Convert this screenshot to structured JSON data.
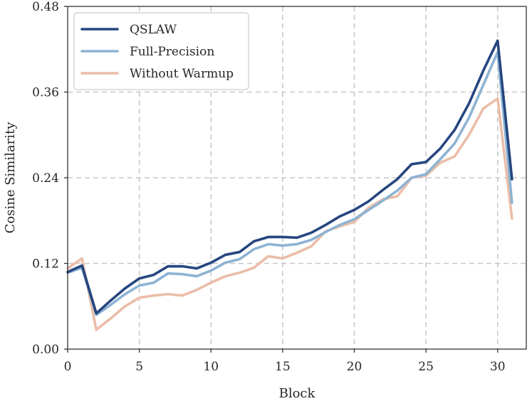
{
  "chart_data": {
    "type": "line",
    "title": "",
    "xlabel": "Block",
    "ylabel": "Cosine Similarity",
    "xlim": [
      0,
      32
    ],
    "ylim": [
      0,
      0.48
    ],
    "xticks": [
      0,
      5,
      10,
      15,
      20,
      25,
      30
    ],
    "xtick_labels": [
      "0",
      "5",
      "10",
      "15",
      "20",
      "25",
      "30"
    ],
    "yticks": [
      0,
      0.12,
      0.24,
      0.36,
      0.48
    ],
    "ytick_labels": [
      "0.00",
      "0.12",
      "0.24",
      "0.36",
      "0.48"
    ],
    "grid": true,
    "legend_position": "top-left",
    "x": [
      0,
      1,
      2,
      3,
      4,
      5,
      6,
      7,
      8,
      9,
      10,
      11,
      12,
      13,
      14,
      15,
      16,
      17,
      18,
      19,
      20,
      21,
      22,
      23,
      24,
      25,
      26,
      27,
      28,
      29,
      30,
      31
    ],
    "series": [
      {
        "name": "QSLAW",
        "color": "#26467f",
        "values": [
          0.108,
          0.117,
          0.05,
          0.068,
          0.085,
          0.099,
          0.104,
          0.116,
          0.116,
          0.113,
          0.121,
          0.132,
          0.136,
          0.151,
          0.157,
          0.157,
          0.156,
          0.163,
          0.174,
          0.186,
          0.195,
          0.207,
          0.223,
          0.238,
          0.259,
          0.262,
          0.281,
          0.307,
          0.344,
          0.39,
          0.432,
          0.238
        ]
      },
      {
        "name": "Full-Precision",
        "color": "#8db3d3",
        "values": [
          0.107,
          0.114,
          0.048,
          0.062,
          0.077,
          0.089,
          0.093,
          0.106,
          0.105,
          0.102,
          0.11,
          0.121,
          0.126,
          0.14,
          0.147,
          0.145,
          0.147,
          0.153,
          0.164,
          0.174,
          0.182,
          0.195,
          0.208,
          0.222,
          0.24,
          0.245,
          0.266,
          0.288,
          0.324,
          0.37,
          0.416,
          0.205
        ]
      },
      {
        "name": "Without Warmup",
        "color": "#ebbda8",
        "values": [
          0.113,
          0.127,
          0.027,
          0.043,
          0.06,
          0.072,
          0.075,
          0.077,
          0.075,
          0.083,
          0.093,
          0.102,
          0.107,
          0.114,
          0.13,
          0.127,
          0.135,
          0.144,
          0.165,
          0.172,
          0.178,
          0.198,
          0.21,
          0.214,
          0.24,
          0.243,
          0.261,
          0.27,
          0.3,
          0.337,
          0.351,
          0.183
        ]
      }
    ]
  }
}
